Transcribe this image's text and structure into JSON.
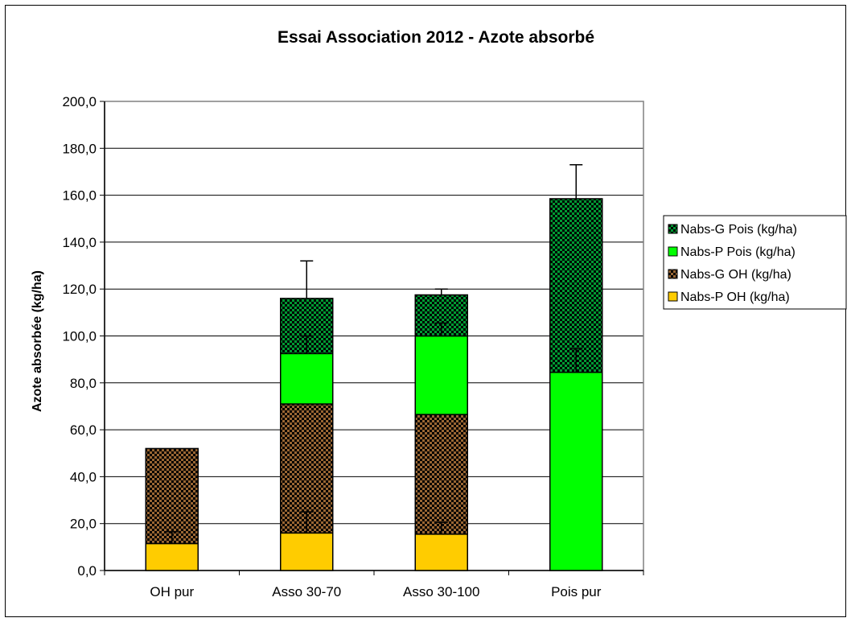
{
  "chart_data": {
    "type": "bar",
    "stacked": true,
    "title": "Essai Association 2012 - Azote absorbé",
    "xlabel": "",
    "ylabel": "Azote absorbée (kg/ha)",
    "ylim": [
      0,
      200
    ],
    "yticks": [
      "0,0",
      "20,0",
      "40,0",
      "60,0",
      "80,0",
      "100,0",
      "120,0",
      "140,0",
      "160,0",
      "180,0",
      "200,0"
    ],
    "ytick_values": [
      0,
      20,
      40,
      60,
      80,
      100,
      120,
      140,
      160,
      180,
      200
    ],
    "grid": true,
    "legend_position": "right",
    "categories": [
      "OH pur",
      "Asso 30-70",
      "Asso 30-100",
      "Pois pur"
    ],
    "series": [
      {
        "name": "Nabs-P OH (kg/ha)",
        "values": [
          11.5,
          16,
          15.5,
          0
        ],
        "color": "#FFCC00",
        "pattern": "solid",
        "error": [
          5,
          9,
          5,
          0
        ]
      },
      {
        "name": "Nabs-G OH (kg/ha)",
        "values": [
          40.5,
          55,
          51,
          0
        ],
        "color": "#996633",
        "pattern": "checker",
        "error": [
          0,
          0,
          0,
          0
        ]
      },
      {
        "name": "Nabs-P Pois (kg/ha)",
        "values": [
          0,
          21.5,
          33.5,
          84.5
        ],
        "color": "#00FF00",
        "pattern": "solid",
        "error": [
          0,
          7.5,
          5.5,
          10
        ]
      },
      {
        "name": "Nabs-G Pois (kg/ha)",
        "values": [
          0,
          23.5,
          17.5,
          74
        ],
        "color": "#009933",
        "pattern": "checker",
        "error": [
          0,
          16,
          2.5,
          14.5
        ]
      }
    ],
    "legend_order": [
      "Nabs-G Pois (kg/ha)",
      "Nabs-P Pois (kg/ha)",
      "Nabs-G OH (kg/ha)",
      "Nabs-P OH (kg/ha)"
    ]
  }
}
